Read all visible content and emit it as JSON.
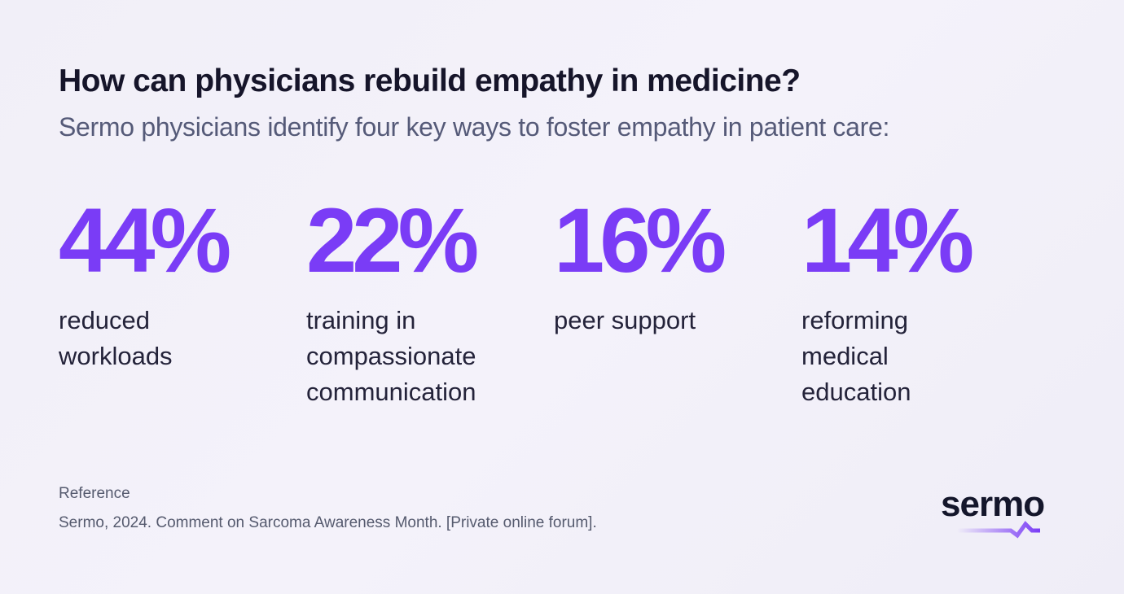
{
  "header": {
    "title": "How can physicians rebuild empathy in medicine?",
    "subtitle": "Sermo physicians identify four key ways to foster empathy in patient care:"
  },
  "stats": [
    {
      "value": "44%",
      "label": "reduced\nworkloads"
    },
    {
      "value": "22%",
      "label": "training in\ncompassionate\ncommunication"
    },
    {
      "value": "16%",
      "label": "peer support"
    },
    {
      "value": "14%",
      "label": "reforming\nmedical\neducation"
    }
  ],
  "reference": {
    "heading": "Reference",
    "text": "Sermo, 2024. Comment on Sarcoma Awareness Month.  [Private online forum]."
  },
  "logo": {
    "text": "sermo"
  },
  "colors": {
    "accent": "#7a3cf6",
    "text": "#16152a",
    "muted": "#555a78"
  }
}
